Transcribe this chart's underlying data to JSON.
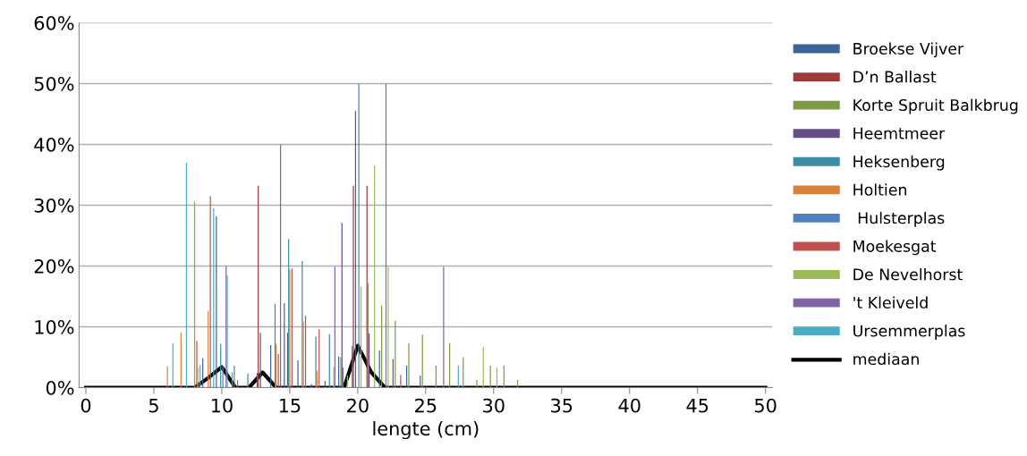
{
  "chart_data": {
    "type": "bar",
    "xlabel": "lengte (cm)",
    "xlim": [
      -0.5,
      50.5
    ],
    "xticks": [
      0,
      5,
      10,
      15,
      20,
      25,
      30,
      35,
      40,
      45,
      50
    ],
    "ylim": [
      0,
      60
    ],
    "yticks": [
      {
        "value": 0,
        "label": "0%"
      },
      {
        "value": 10,
        "label": "10%"
      },
      {
        "value": 20,
        "label": "20%"
      },
      {
        "value": 30,
        "label": "30%"
      },
      {
        "value": 40,
        "label": "40%"
      },
      {
        "value": 50,
        "label": "50%"
      },
      {
        "value": 60,
        "label": "60%"
      }
    ],
    "grid": "y",
    "legend": "right",
    "series": [
      {
        "name": "Broekse Vijver",
        "color": "#3c6499",
        "x": [
          9,
          10,
          13,
          14,
          15,
          16,
          17,
          18,
          19,
          20,
          22,
          23,
          24,
          25
        ],
        "values": [
          4.8,
          28.2,
          2.4,
          7.0,
          13.9,
          4.5,
          0.6,
          1.1,
          5.1,
          6.8,
          6.1,
          4.7,
          3.6,
          2.0
        ]
      },
      {
        "name": "D’n Ballast",
        "color": "#9e3b38",
        "x": [
          13,
          20,
          21
        ],
        "values": [
          33.2,
          33.2,
          33.2
        ]
      },
      {
        "name": "Korte Spruit Balkbrug",
        "color": "#7e9a44",
        "x": [
          11,
          19,
          21,
          22,
          23,
          24,
          25,
          26,
          27,
          28,
          29,
          30,
          31,
          32
        ],
        "values": [
          2.5,
          5.0,
          17.2,
          13.5,
          11.0,
          7.3,
          8.7,
          3.6,
          7.3,
          5.0,
          1.3,
          3.6,
          3.6,
          1.3
        ]
      },
      {
        "name": "Heemtmeer",
        "color": "#664e86",
        "x": [
          13,
          15,
          19,
          20,
          21
        ],
        "values": [
          9.0,
          9.0,
          27.1,
          45.5,
          8.9
        ]
      },
      {
        "name": "Heksenberg",
        "color": "#3a8ca2",
        "x": [
          10,
          11,
          12,
          14,
          15,
          16,
          17,
          18,
          19
        ],
        "values": [
          7.2,
          3.6,
          2.3,
          13.8,
          24.4,
          20.8,
          8.4,
          8.8,
          3.3
        ]
      },
      {
        "name": "Holtien",
        "color": "#d8813a",
        "x": [
          6,
          7,
          8,
          9,
          14,
          15,
          16,
          17
        ],
        "values": [
          3.5,
          9.0,
          30.6,
          12.6,
          7.2,
          19.4,
          10.9,
          2.8
        ]
      },
      {
        "name": " Hulsterplas",
        "color": "#4f81bd",
        "x": [
          10,
          20,
          22
        ],
        "values": [
          3.6,
          50,
          50
        ]
      },
      {
        "name": "Moekesgat",
        "color": "#c0504d",
        "x": [
          8,
          9,
          11,
          14,
          15,
          16,
          17,
          23
        ],
        "values": [
          7.7,
          31.5,
          1.2,
          5.5,
          19.6,
          11.8,
          9.6,
          2.1
        ]
      },
      {
        "name": "De Nevelhorst",
        "color": "#9bbb59",
        "x": [
          8,
          18,
          19,
          20,
          21,
          22,
          29,
          30
        ],
        "values": [
          3.3,
          3.3,
          2.0,
          16.6,
          36.5,
          19.9,
          6.7,
          3.3
        ]
      },
      {
        "name": "'t Kleiveld",
        "color": "#8064a2",
        "x": [
          10,
          14,
          18,
          26
        ],
        "values": [
          20.0,
          40.0,
          19.9,
          19.9
        ]
      },
      {
        "name": "Ursemmerplas",
        "color": "#4bacc6",
        "x": [
          6,
          7,
          8,
          9,
          10,
          27
        ],
        "values": [
          7.3,
          37.0,
          3.7,
          29.5,
          18.5,
          3.6
        ]
      },
      {
        "name": "mediaan",
        "type": "line",
        "color": "#000000",
        "x": [
          0,
          8,
          9,
          10,
          11,
          12,
          13,
          14,
          19,
          20,
          21,
          22,
          50
        ],
        "values": [
          0,
          0,
          1.6,
          3.4,
          0,
          0,
          2.5,
          0,
          0,
          6.9,
          2.5,
          0,
          0
        ]
      }
    ]
  }
}
